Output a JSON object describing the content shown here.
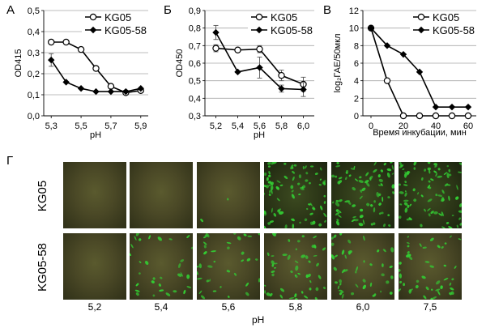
{
  "panel_letters": [
    "А",
    "Б",
    "В",
    "Г"
  ],
  "chart_data": [
    {
      "type": "line",
      "panel": "А",
      "ylabel": "OD415",
      "xlabel": "pH",
      "xlim": [
        5.25,
        5.95
      ],
      "ylim": [
        0.0,
        0.5
      ],
      "xticks": [
        "5,3",
        "5,5",
        "5,7",
        "5,9"
      ],
      "xtick_values": [
        5.3,
        5.5,
        5.7,
        5.9
      ],
      "yticks": [
        "0,0",
        "0,1",
        "0,2",
        "0,3",
        "0,4",
        "0,5"
      ],
      "ytick_values": [
        0.0,
        0.1,
        0.2,
        0.3,
        0.4,
        0.5
      ],
      "legend": "top-right",
      "grid": true,
      "series": [
        {
          "name": "KG05",
          "marker": "circle-open",
          "x": [
            5.3,
            5.4,
            5.5,
            5.6,
            5.7,
            5.8,
            5.9
          ],
          "y": [
            0.35,
            0.35,
            0.315,
            0.225,
            0.14,
            0.11,
            0.12
          ],
          "err": [
            0.0,
            0.0,
            0.0,
            0.0,
            0.0,
            0.0,
            0.0
          ]
        },
        {
          "name": "KG05-58",
          "marker": "diamond-filled",
          "x": [
            5.3,
            5.4,
            5.5,
            5.6,
            5.7,
            5.8,
            5.9
          ],
          "y": [
            0.265,
            0.16,
            0.13,
            0.115,
            0.115,
            0.115,
            0.13
          ],
          "err": [
            0.03,
            0.0,
            0.0,
            0.0,
            0.0,
            0.0,
            0.0
          ]
        }
      ]
    },
    {
      "type": "line",
      "panel": "Б",
      "ylabel": "OD450",
      "xlabel": "pH",
      "xlim": [
        5.1,
        6.1
      ],
      "ylim": [
        0.3,
        0.9
      ],
      "xticks": [
        "5,2",
        "5,4",
        "5,6",
        "5,8",
        "6,0"
      ],
      "xtick_values": [
        5.2,
        5.4,
        5.6,
        5.8,
        6.0
      ],
      "yticks": [
        "0,3",
        "0,4",
        "0,5",
        "0,6",
        "0,7",
        "0,8",
        "0,9"
      ],
      "ytick_values": [
        0.3,
        0.4,
        0.5,
        0.6,
        0.7,
        0.8,
        0.9
      ],
      "legend": "top-right",
      "grid": true,
      "series": [
        {
          "name": "KG05",
          "marker": "circle-open",
          "x": [
            5.2,
            5.4,
            5.6,
            5.8,
            6.0
          ],
          "y": [
            0.685,
            0.675,
            0.68,
            0.53,
            0.48
          ],
          "err": [
            0.02,
            0.0,
            0.02,
            0.03,
            0.04
          ]
        },
        {
          "name": "KG05-58",
          "marker": "diamond-filled",
          "x": [
            5.2,
            5.4,
            5.6,
            5.8,
            6.0
          ],
          "y": [
            0.775,
            0.55,
            0.575,
            0.455,
            0.45
          ],
          "err": [
            0.04,
            0.0,
            0.06,
            0.02,
            0.04
          ]
        }
      ]
    },
    {
      "type": "line",
      "panel": "В",
      "ylabel": "log₂ГАЕ/50мкл",
      "xlabel": "Время инкубации, мин",
      "xlim": [
        -5,
        65
      ],
      "ylim": [
        0,
        12
      ],
      "xticks": [
        "0",
        "20",
        "40",
        "60"
      ],
      "xtick_values": [
        0,
        20,
        40,
        60
      ],
      "yticks": [
        "0",
        "2",
        "4",
        "6",
        "8",
        "10",
        "12"
      ],
      "ytick_values": [
        0,
        2,
        4,
        6,
        8,
        10,
        12
      ],
      "legend": "top-right",
      "grid": true,
      "series": [
        {
          "name": "KG05",
          "marker": "circle-open",
          "x": [
            0,
            10,
            20,
            30,
            40,
            50,
            60
          ],
          "y": [
            10,
            4,
            0,
            0,
            0,
            0,
            0
          ],
          "err": [
            0,
            0,
            0,
            0,
            0,
            0,
            0
          ]
        },
        {
          "name": "KG05-58",
          "marker": "diamond-filled",
          "x": [
            0,
            10,
            20,
            30,
            40,
            50,
            60
          ],
          "y": [
            10,
            8,
            7,
            5,
            1,
            1,
            1
          ],
          "err": [
            0,
            0,
            0,
            0,
            0,
            0,
            0
          ]
        }
      ]
    }
  ],
  "micrographs": {
    "panel": "Г",
    "rows": [
      "KG05",
      "KG05-58"
    ],
    "columns": [
      "5,2",
      "5,4",
      "5,6",
      "5,8",
      "6,0",
      "7,5"
    ],
    "xlabel": "pH",
    "fluorescence_level": [
      [
        0.0,
        0.0,
        0.02,
        0.9,
        0.85,
        0.9
      ],
      [
        0.0,
        0.35,
        0.4,
        0.55,
        0.5,
        0.5
      ]
    ],
    "colors": {
      "cell_green": "#33cc33",
      "background_dark": "#4a4826"
    }
  }
}
